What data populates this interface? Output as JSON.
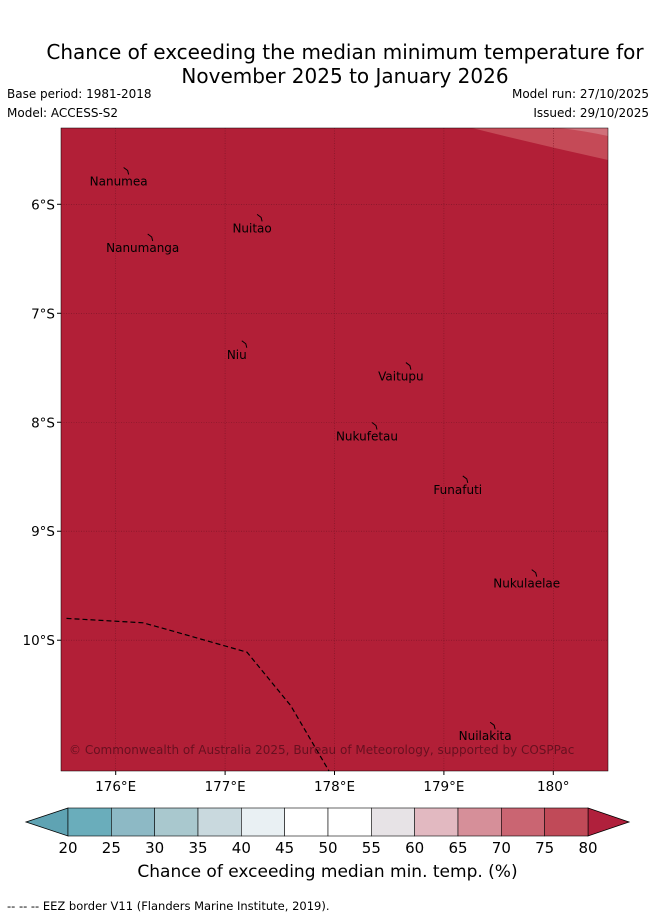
{
  "title": {
    "line1": "Chance of exceeding the median minimum temperature for",
    "line2": "November 2025 to January 2026"
  },
  "meta": {
    "base_period": "Base period: 1981-2018",
    "model": "Model: ACCESS-S2",
    "model_run": "Model run: 27/10/2025",
    "issued": "Issued: 29/10/2025"
  },
  "map": {
    "fill_color": "#B21F37",
    "corner_color": "#C54A57",
    "corner_light_color": "#D0707A",
    "extent": {
      "lon": [
        175.5,
        180.5
      ],
      "lat": [
        -5.3,
        -11.2
      ]
    },
    "lon_ticks": [
      {
        "value": 176,
        "label": "176°E"
      },
      {
        "value": 177,
        "label": "177°E"
      },
      {
        "value": 178,
        "label": "178°E"
      },
      {
        "value": 179,
        "label": "179°E"
      },
      {
        "value": 180,
        "label": "180°"
      }
    ],
    "lat_ticks": [
      {
        "value": -6,
        "label": "6°S"
      },
      {
        "value": -7,
        "label": "7°S"
      },
      {
        "value": -8,
        "label": "8°S"
      },
      {
        "value": -9,
        "label": "9°S"
      },
      {
        "value": -10,
        "label": "10°S"
      }
    ],
    "islands": [
      {
        "name": "Nanumea",
        "lon": 176.1,
        "lat": -5.69
      },
      {
        "name": "Nuitao",
        "lon": 177.32,
        "lat": -6.12
      },
      {
        "name": "Nanumanga",
        "lon": 176.32,
        "lat": -6.3
      },
      {
        "name": "Niu",
        "lon": 177.18,
        "lat": -7.28
      },
      {
        "name": "Vaitupu",
        "lon": 178.68,
        "lat": -7.48
      },
      {
        "name": "Nukufetau",
        "lon": 178.37,
        "lat": -8.03
      },
      {
        "name": "Funafuti",
        "lon": 179.2,
        "lat": -8.52
      },
      {
        "name": "Nukulaelae",
        "lon": 179.83,
        "lat": -9.38
      },
      {
        "name": "Nuilakita",
        "lon": 179.45,
        "lat": -10.78
      }
    ],
    "eez_border": [
      {
        "lon": 175.55,
        "lat": -9.8
      },
      {
        "lon": 176.25,
        "lat": -9.84
      },
      {
        "lon": 176.5,
        "lat": -9.91
      },
      {
        "lon": 177.2,
        "lat": -10.11
      },
      {
        "lon": 177.6,
        "lat": -10.6
      },
      {
        "lon": 177.95,
        "lat": -11.2
      }
    ],
    "copyright": "© Commonwealth of Australia 2025, Bureau of Meteorology, supported by COSPPac"
  },
  "colorbar": {
    "title": "Chance of exceeding median min. temp. (%)",
    "ticks": [
      "20",
      "25",
      "30",
      "35",
      "40",
      "45",
      "50",
      "55",
      "60",
      "65",
      "70",
      "75",
      "80"
    ],
    "low_extend_color": "#5FA3B3",
    "high_extend_color": "#B0203C",
    "colors": [
      "#6AADBB",
      "#8DB9C5",
      "#A9C8CE",
      "#C9D9DE",
      "#E9F0F3",
      "#FFFFFF",
      "#FFFFFF",
      "#E7E3E6",
      "#E2B9C1",
      "#D68F99",
      "#CA6572",
      "#C04A58"
    ]
  },
  "footer": "-- -- -- EEZ border V11 (Flanders Marine Institute, 2019)."
}
